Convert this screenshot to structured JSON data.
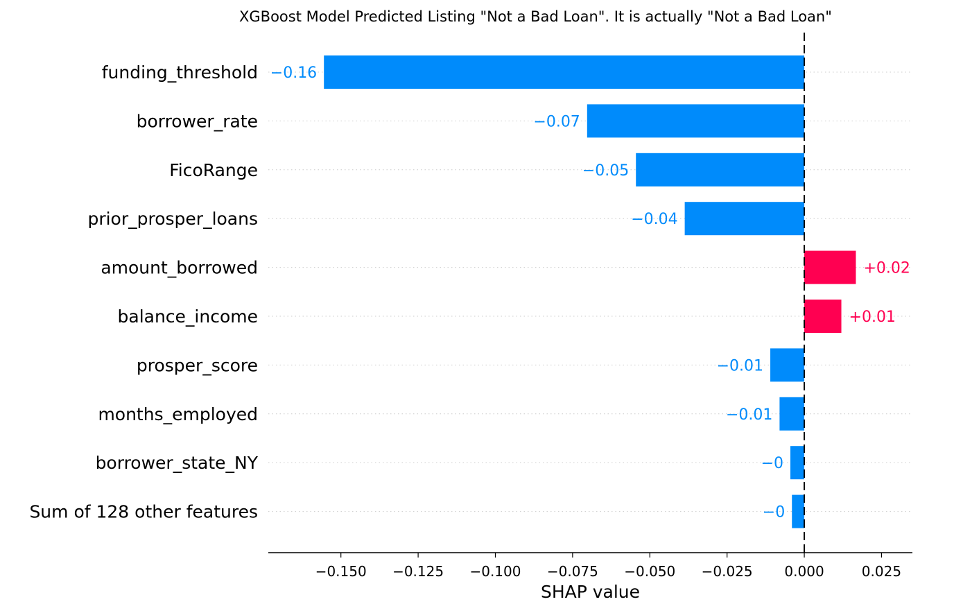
{
  "chart_data": {
    "type": "bar",
    "title": "XGBoost Model Predicted Listing \"Not a Bad Loan\". It is actually \"Not a Bad Loan\"",
    "xlabel": "SHAP value",
    "ylabel": "",
    "orientation": "horizontal",
    "categories": [
      "funding_threshold",
      "borrower_rate",
      "FicoRange",
      "prior_prosper_loans",
      "amount_borrowed",
      "balance_income",
      "prosper_score",
      "months_employed",
      "borrower_state_NY",
      "Sum of 128 other features"
    ],
    "values": [
      -0.1555,
      -0.0703,
      -0.0545,
      -0.0387,
      0.0167,
      0.012,
      -0.011,
      -0.008,
      -0.0045,
      -0.004
    ],
    "value_labels": [
      "−0.16",
      "−0.07",
      "−0.05",
      "−0.04",
      "+0.02",
      "+0.01",
      "−0.01",
      "−0.01",
      "−0",
      "−0"
    ],
    "xticks": [
      -0.15,
      -0.125,
      -0.1,
      -0.075,
      -0.05,
      -0.025,
      0.0,
      0.025
    ],
    "xtick_labels": [
      "−0.150",
      "−0.125",
      "−0.100",
      "−0.075",
      "−0.050",
      "−0.025",
      "0.000",
      "0.025"
    ],
    "xlim": [
      -0.1735,
      0.035
    ],
    "grid": "horizontal dotted",
    "colors": {
      "negative": "#008bfb",
      "positive": "#ff0051"
    }
  }
}
